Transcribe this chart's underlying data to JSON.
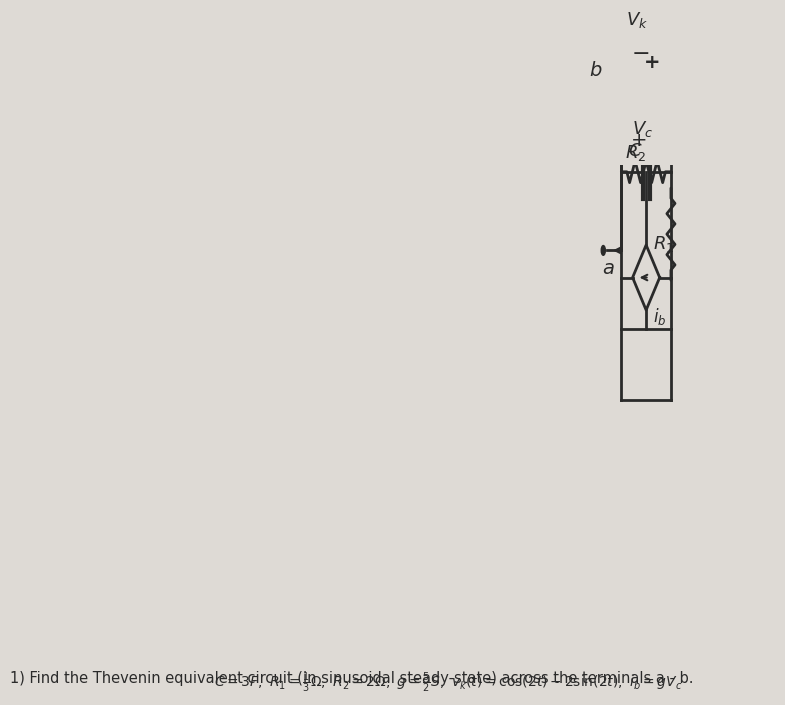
{
  "bg_color": "#dedad5",
  "circuit_color": "#2a2a2a",
  "text_color": "#2a2a2a",
  "title": "1) Find the Thevenin equivalent circuit (in sinusoidal steady-state) across the terminals a - b.",
  "params": "C = 3F, R₁ = ⅓Ω, R₂ = 2Ω, g = ⁵₂ S, vₖ(t) = cos(2t) − 2sin(2t), iᵇ = gVᴄ",
  "lw": 2.0,
  "font_size": 11
}
